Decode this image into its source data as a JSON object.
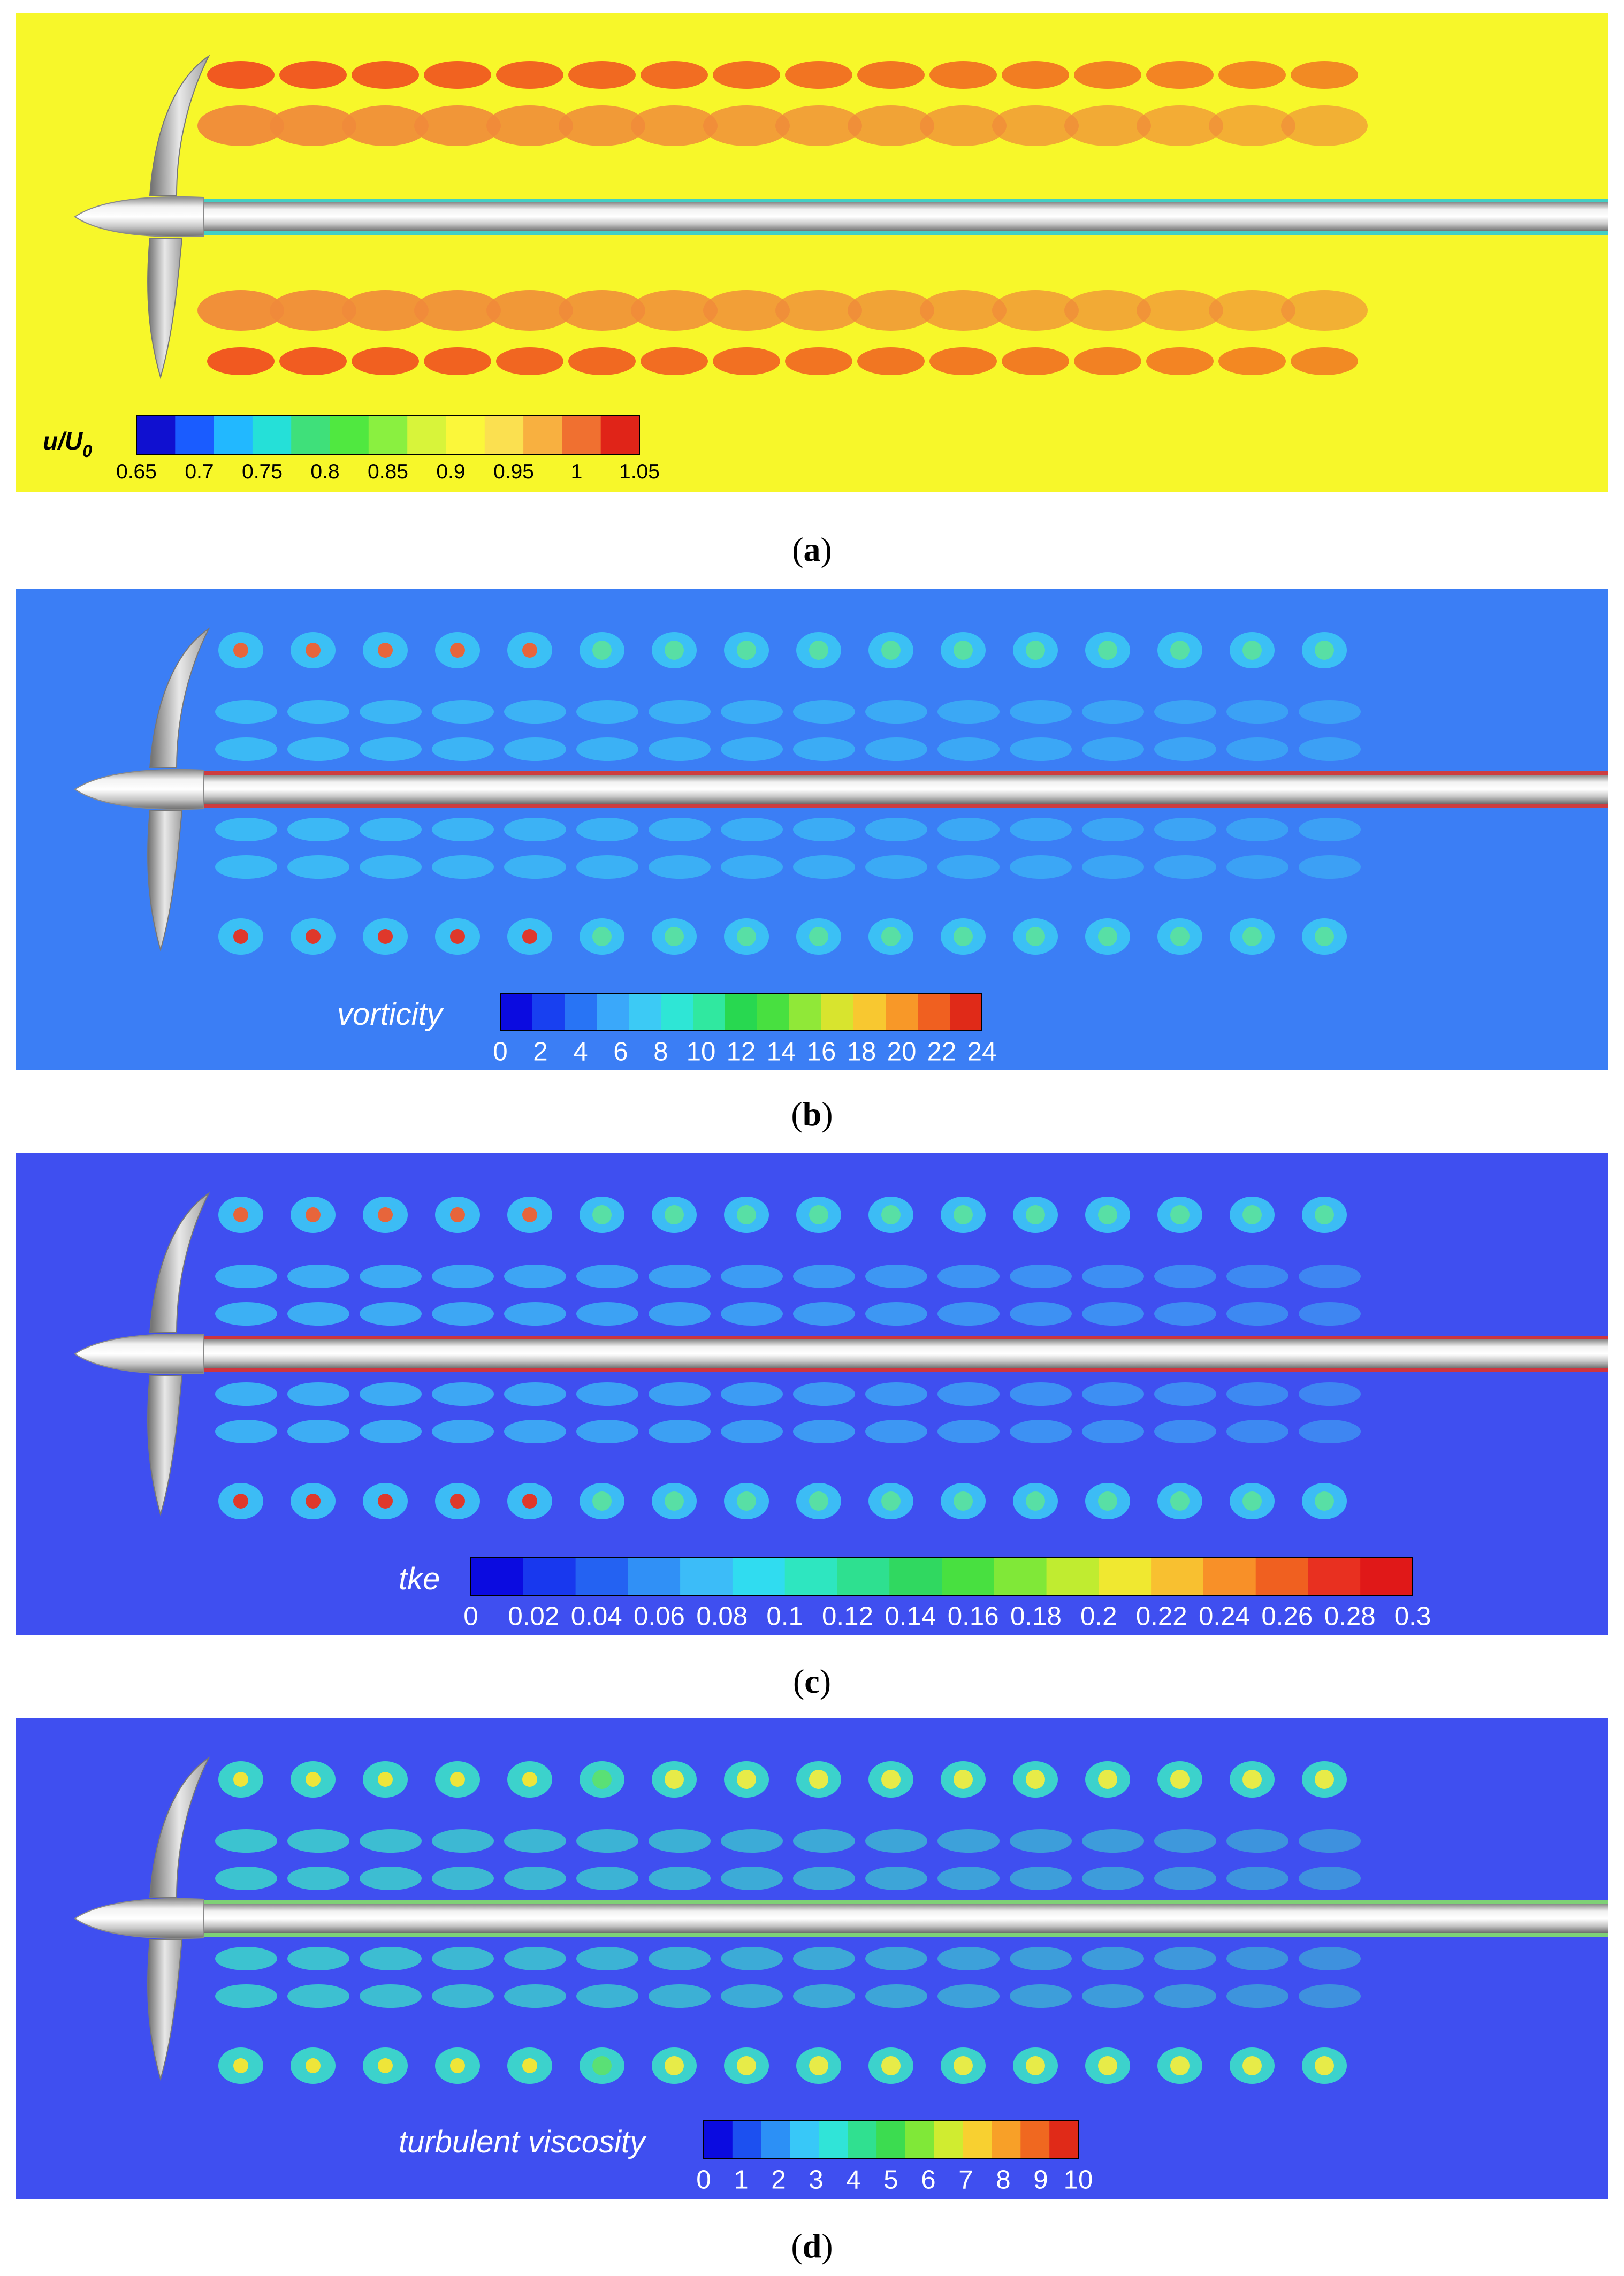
{
  "panels": [
    {
      "id": "a",
      "caption_label": "a",
      "field_label": "u/U",
      "field_label_sub": "0",
      "colormap": "velocity",
      "background": "#f7f72a",
      "colorbar_ticks": [
        "0.65",
        "0.7",
        "0.75",
        "0.8",
        "0.85",
        "0.9",
        "0.95",
        "1",
        "1.05"
      ],
      "colorbar_colors": [
        "#1010d0",
        "#1a5cff",
        "#22b8ff",
        "#25e0d8",
        "#3fe07a",
        "#50e840",
        "#8af040",
        "#d8f43a",
        "#fbf73a",
        "#fbe050",
        "#f8b040",
        "#f07030",
        "#e02418"
      ]
    },
    {
      "id": "b",
      "caption_label": "b",
      "field_label": "vorticity",
      "colormap": "cool",
      "background": "#3b7ef5",
      "colorbar_ticks": [
        "0",
        "2",
        "4",
        "6",
        "8",
        "10",
        "12",
        "14",
        "16",
        "18",
        "20",
        "22",
        "24"
      ],
      "colorbar_colors": [
        "#0b0be0",
        "#1840f0",
        "#2874f5",
        "#3aa8fa",
        "#3ccaf5",
        "#2ee6d6",
        "#30e8a0",
        "#28d850",
        "#48e040",
        "#90e838",
        "#d8e42e",
        "#f8c830",
        "#f89828",
        "#f06020",
        "#e02a18"
      ]
    },
    {
      "id": "c",
      "caption_label": "c",
      "field_label": "tke",
      "colormap": "cool",
      "background": "#3f4ff0",
      "colorbar_ticks": [
        "0",
        "0.02",
        "0.04",
        "0.06",
        "0.08",
        "0.1",
        "0.12",
        "0.14",
        "0.16",
        "0.18",
        "0.2",
        "0.22",
        "0.24",
        "0.26",
        "0.28",
        "0.3"
      ],
      "colorbar_colors": [
        "#0b0be0",
        "#1838ee",
        "#2462f2",
        "#3090f6",
        "#3cbcf8",
        "#30dcf0",
        "#2ee6c0",
        "#2ee090",
        "#30d860",
        "#48e040",
        "#80e838",
        "#c0ec30",
        "#f0e830",
        "#f8c030",
        "#f89028",
        "#f06020",
        "#e83020",
        "#e01818"
      ]
    },
    {
      "id": "d",
      "caption_label": "d",
      "field_label": "turbulent viscosity",
      "colormap": "cool",
      "background": "#3f4ff0",
      "colorbar_ticks": [
        "0",
        "1",
        "2",
        "3",
        "4",
        "5",
        "6",
        "7",
        "8",
        "9",
        "10"
      ],
      "colorbar_colors": [
        "#0b0be0",
        "#1c50f0",
        "#2c90f6",
        "#38c8f8",
        "#30e4d8",
        "#30e090",
        "#3cdc50",
        "#80e838",
        "#d0ec30",
        "#f8d030",
        "#f8a028",
        "#f06820",
        "#e02a18"
      ]
    }
  ]
}
